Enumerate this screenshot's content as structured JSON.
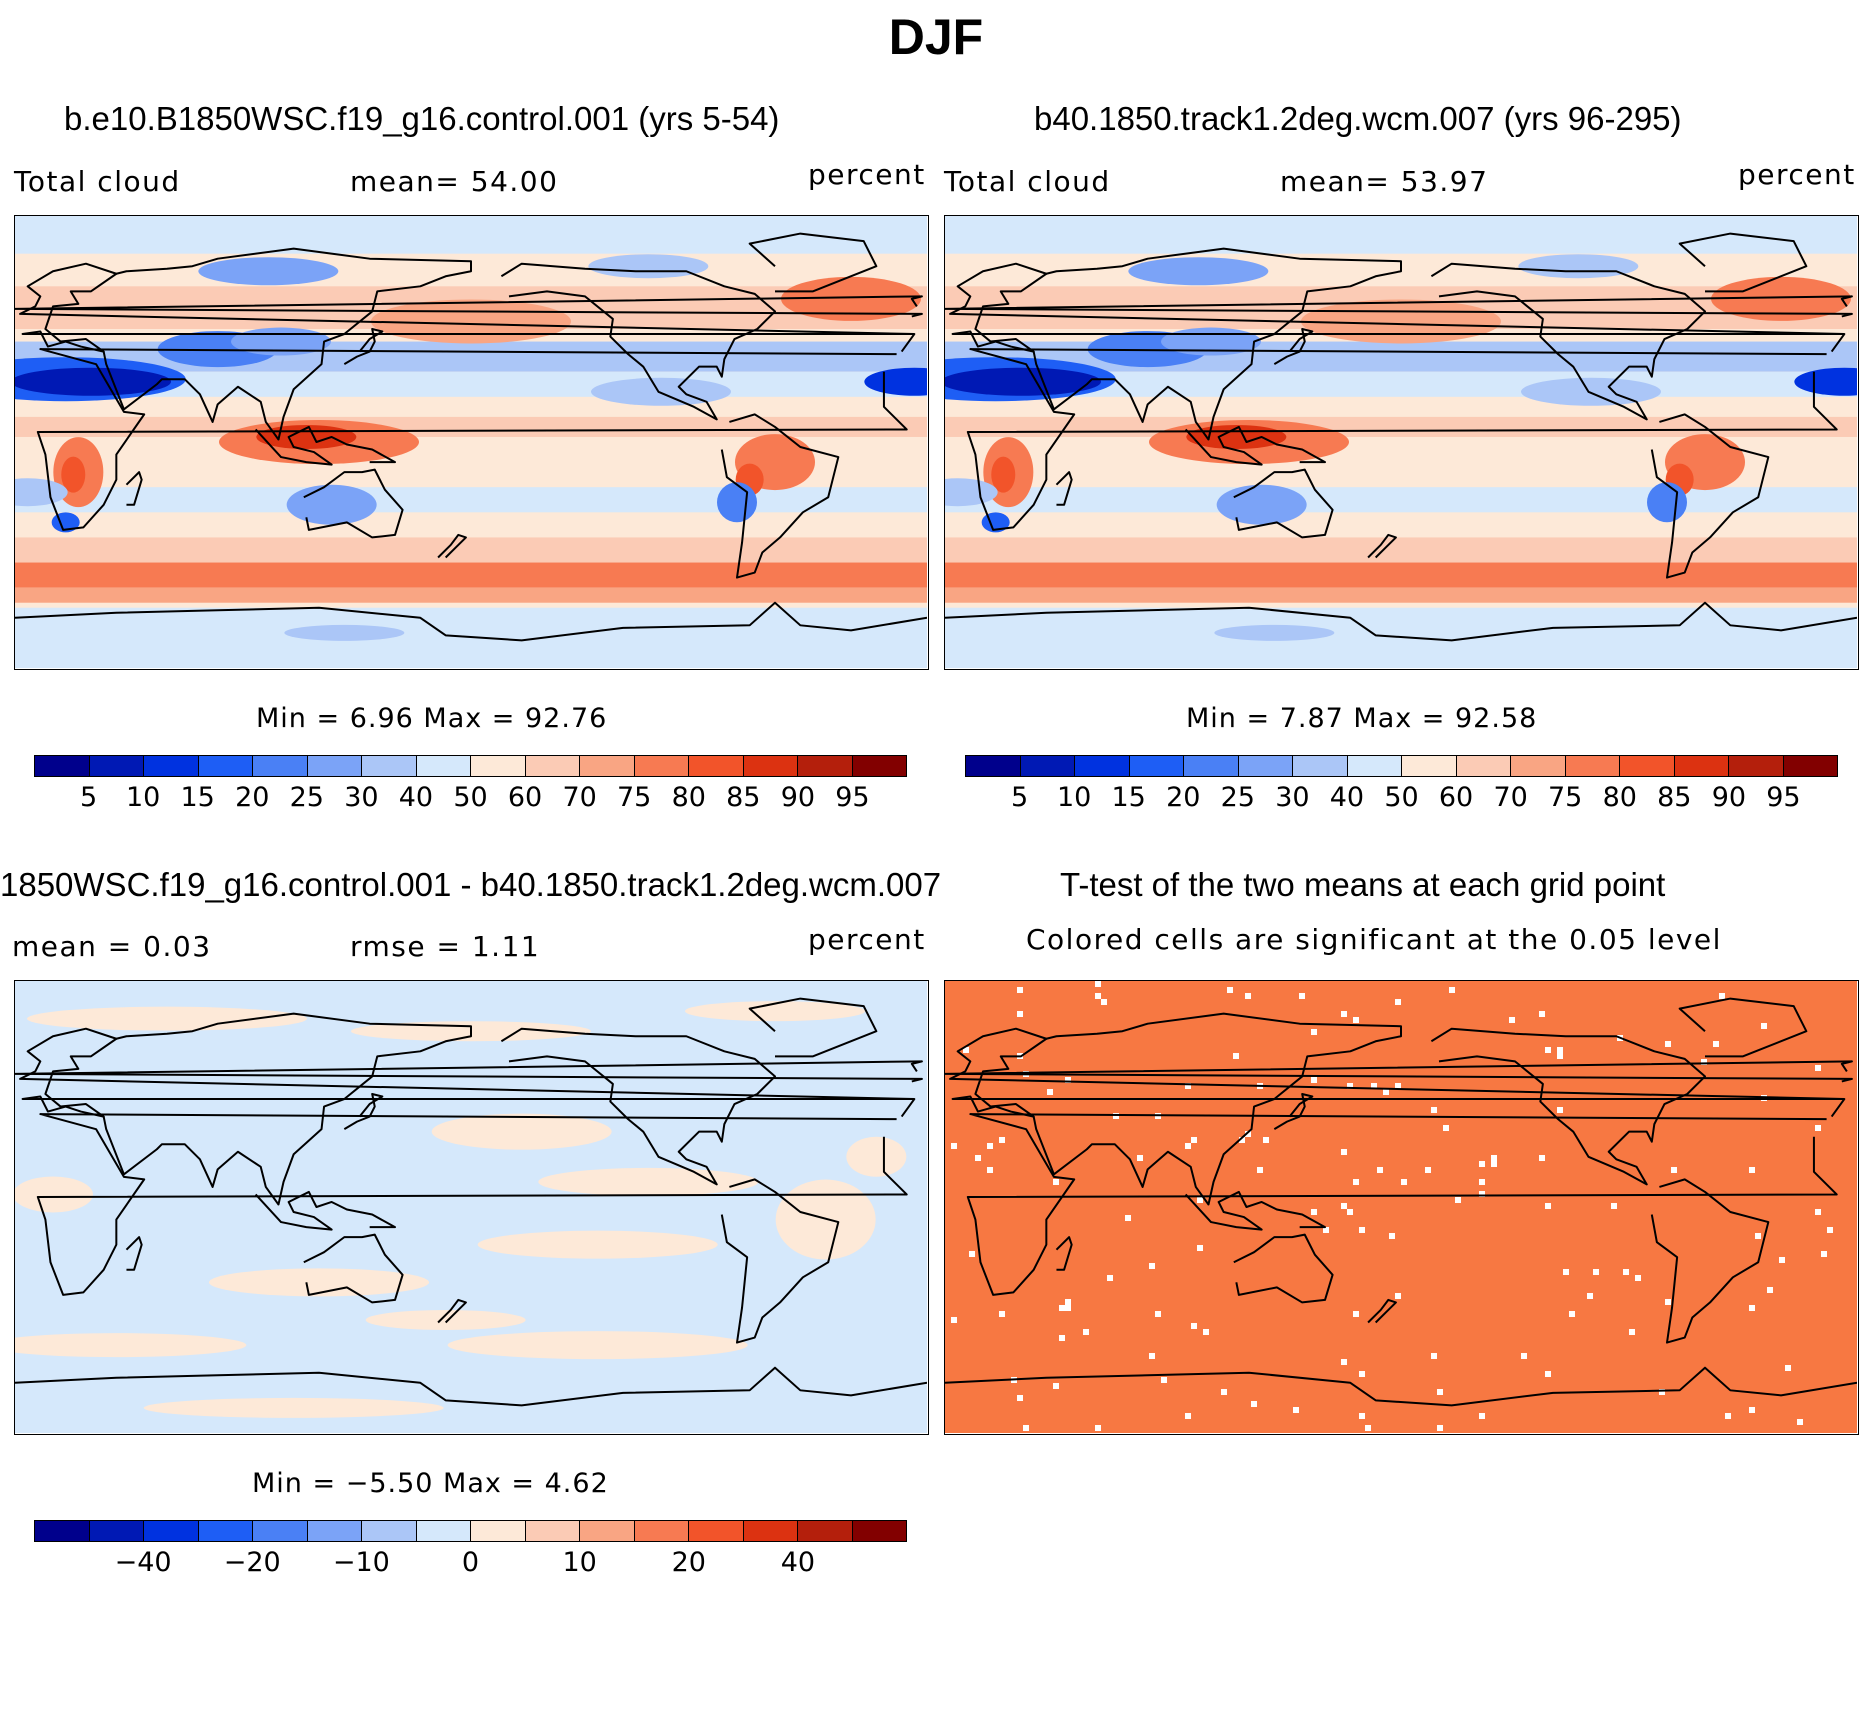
{
  "figure_title": "DJF",
  "colors": {
    "scale": [
      "#00008c",
      "#0019b4",
      "#0032e0",
      "#1e5ef5",
      "#4a80f5",
      "#7ba3f7",
      "#abc6f7",
      "#d5e8fb",
      "#fde9d8",
      "#fbcbb5",
      "#f9a583",
      "#f77a52",
      "#f2542a",
      "#dc3211",
      "#b41f0c",
      "#820000"
    ],
    "significance": "#f77842",
    "coast": "#000000"
  },
  "panels": [
    {
      "title": "b.e10.B1850WSC.f19_g16.control.001 (yrs 5-54)",
      "left_label": "Total cloud",
      "center_label": "mean=   54.00",
      "units": "percent",
      "min_max": "Min =     6.96  Max =    92.76",
      "colorbar_ticks": [
        "5",
        "10",
        "15",
        "20",
        "25",
        "30",
        "40",
        "50",
        "60",
        "70",
        "75",
        "80",
        "85",
        "90",
        "95"
      ]
    },
    {
      "title": "b40.1850.track1.2deg.wcm.007 (yrs 96-295)",
      "left_label": "Total cloud",
      "center_label": "mean=   53.97",
      "units": "percent",
      "min_max": "Min =     7.87  Max =    92.58",
      "colorbar_ticks": [
        "5",
        "10",
        "15",
        "20",
        "25",
        "30",
        "40",
        "50",
        "60",
        "70",
        "75",
        "80",
        "85",
        "90",
        "95"
      ]
    },
    {
      "title": "1850WSC.f19_g16.control.001 - b40.1850.track1.2deg.wcm.007",
      "left_label": "mean =     0.03",
      "center_label": "rmse =     1.11",
      "units": "percent",
      "min_max": "Min =   −5.50  Max =     4.62",
      "colorbar_ticks": [
        "−40",
        "−20",
        "−10",
        "0",
        "10",
        "20",
        "40"
      ]
    },
    {
      "title": "T-test of the two means at each grid point",
      "subtitle": "Colored cells are significant at the 0.05 level"
    }
  ]
}
